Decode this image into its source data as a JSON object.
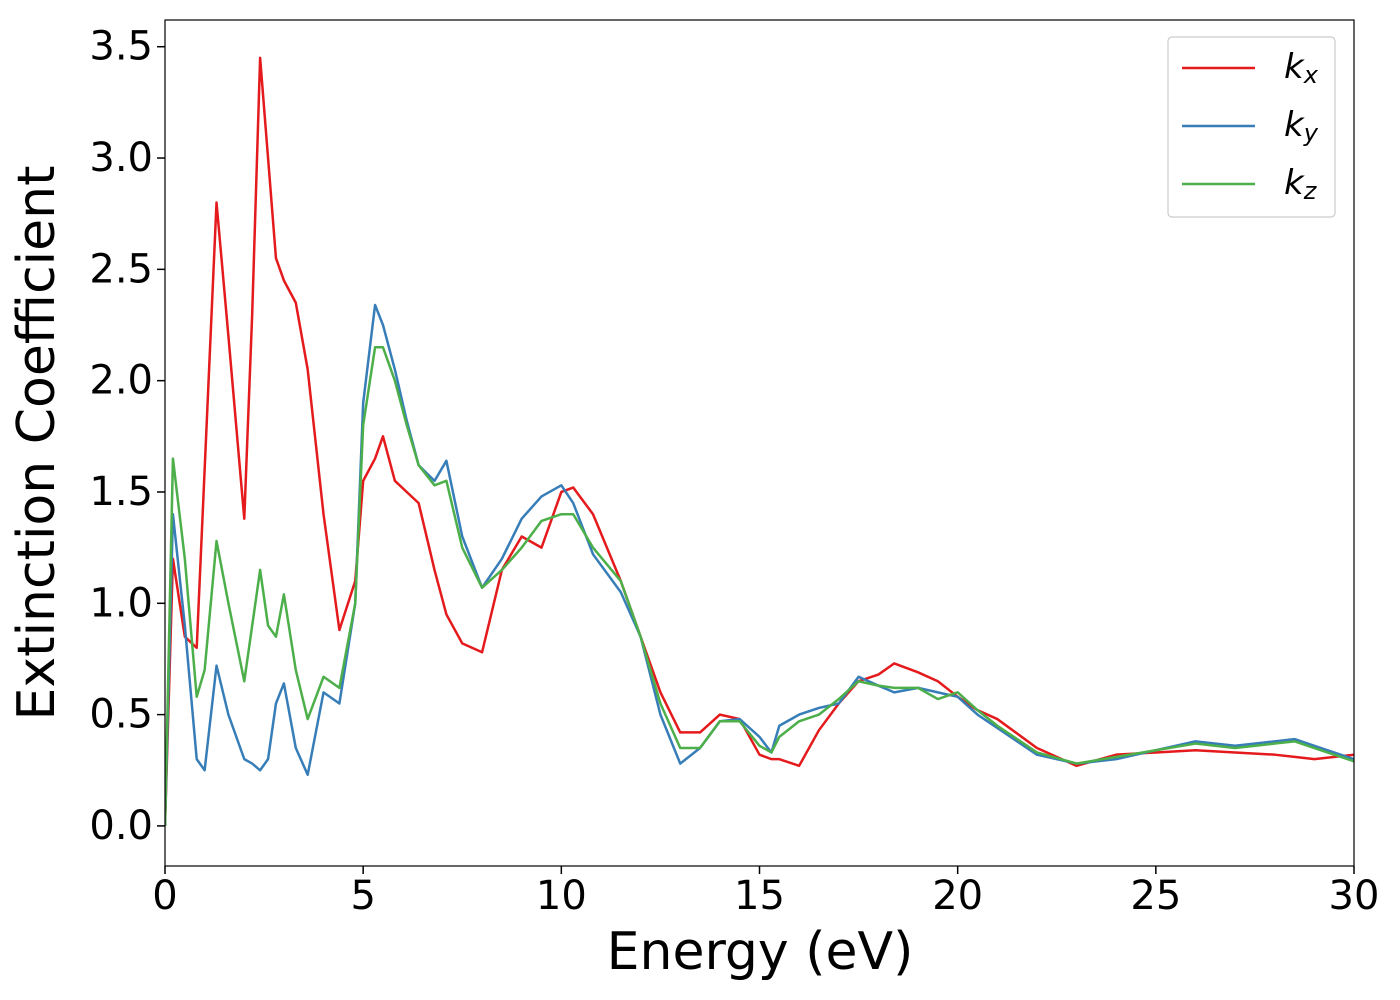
{
  "chart_data": {
    "type": "line",
    "xlabel": "Energy (eV)",
    "ylabel": "Extinction Coefficient",
    "x": [
      0,
      0.2,
      0.5,
      0.8,
      1.0,
      1.3,
      1.6,
      2.0,
      2.2,
      2.4,
      2.6,
      2.8,
      3.0,
      3.3,
      3.6,
      4.0,
      4.4,
      4.8,
      5.0,
      5.3,
      5.5,
      5.8,
      6.1,
      6.4,
      6.8,
      7.1,
      7.5,
      8.0,
      8.5,
      9.0,
      9.5,
      10.0,
      10.3,
      10.8,
      11.5,
      12.0,
      12.5,
      13.0,
      13.5,
      14.0,
      14.5,
      15.0,
      15.3,
      15.5,
      16.0,
      16.5,
      17.0,
      17.5,
      18.0,
      18.4,
      19.0,
      19.5,
      20.0,
      20.5,
      21.0,
      22.0,
      23.0,
      24.0,
      25.0,
      26.0,
      27.0,
      28.0,
      28.5,
      29.0,
      30.0
    ],
    "series": [
      {
        "name": "kx",
        "color": "#e41a1c",
        "values": [
          0,
          1.2,
          0.85,
          0.8,
          1.6,
          2.8,
          2.2,
          1.38,
          2.3,
          3.45,
          3.0,
          2.55,
          2.45,
          2.35,
          2.05,
          1.4,
          0.88,
          1.1,
          1.55,
          1.65,
          1.75,
          1.55,
          1.5,
          1.45,
          1.15,
          0.95,
          0.82,
          0.78,
          1.15,
          1.3,
          1.25,
          1.5,
          1.52,
          1.4,
          1.1,
          0.85,
          0.6,
          0.42,
          0.42,
          0.5,
          0.48,
          0.32,
          0.3,
          0.3,
          0.27,
          0.43,
          0.55,
          0.65,
          0.68,
          0.73,
          0.69,
          0.65,
          0.58,
          0.52,
          0.48,
          0.35,
          0.27,
          0.32,
          0.33,
          0.34,
          0.33,
          0.32,
          0.31,
          0.3,
          0.32
        ]
      },
      {
        "name": "ky",
        "color": "#377eb8",
        "values": [
          0,
          1.4,
          0.9,
          0.3,
          0.25,
          0.72,
          0.5,
          0.3,
          0.28,
          0.25,
          0.3,
          0.55,
          0.64,
          0.35,
          0.23,
          0.6,
          0.55,
          1.0,
          1.9,
          2.34,
          2.25,
          2.05,
          1.82,
          1.62,
          1.55,
          1.64,
          1.3,
          1.07,
          1.2,
          1.38,
          1.48,
          1.53,
          1.45,
          1.22,
          1.05,
          0.85,
          0.5,
          0.28,
          0.35,
          0.47,
          0.48,
          0.4,
          0.33,
          0.45,
          0.5,
          0.53,
          0.55,
          0.67,
          0.63,
          0.6,
          0.62,
          0.6,
          0.58,
          0.5,
          0.44,
          0.32,
          0.28,
          0.3,
          0.34,
          0.38,
          0.36,
          0.38,
          0.39,
          0.36,
          0.3
        ]
      },
      {
        "name": "kz",
        "color": "#4daf4a",
        "values": [
          0,
          1.65,
          1.2,
          0.58,
          0.7,
          1.28,
          1.0,
          0.65,
          0.9,
          1.15,
          0.9,
          0.85,
          1.04,
          0.7,
          0.48,
          0.67,
          0.62,
          1.0,
          1.8,
          2.15,
          2.15,
          2.0,
          1.8,
          1.62,
          1.53,
          1.55,
          1.25,
          1.07,
          1.15,
          1.25,
          1.37,
          1.4,
          1.4,
          1.25,
          1.1,
          0.85,
          0.55,
          0.35,
          0.35,
          0.47,
          0.47,
          0.36,
          0.33,
          0.4,
          0.47,
          0.5,
          0.57,
          0.65,
          0.63,
          0.62,
          0.62,
          0.57,
          0.6,
          0.52,
          0.45,
          0.33,
          0.28,
          0.31,
          0.34,
          0.37,
          0.35,
          0.37,
          0.38,
          0.35,
          0.29
        ]
      }
    ],
    "xlim": [
      0,
      30
    ],
    "xticks": [
      0,
      5,
      10,
      15,
      20,
      25,
      30
    ],
    "ylim": [
      -0.18,
      3.62
    ],
    "yticks": [
      {
        "value": 0,
        "label": "0.0"
      },
      0.5,
      {
        "value": 1,
        "label": "1.0"
      },
      1.5,
      {
        "value": 2,
        "label": "2.0"
      },
      2.5,
      {
        "value": 3,
        "label": "3.0"
      },
      3.5
    ],
    "grid": false,
    "legend": "upper right"
  }
}
